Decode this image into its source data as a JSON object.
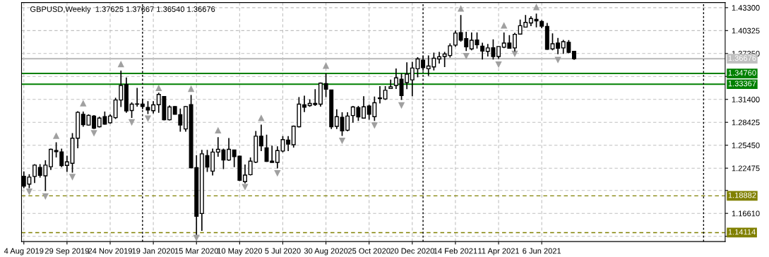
{
  "chart_data": {
    "type": "candlestick",
    "title": "GBPUSD,Weekly  1.37625 1.37667 1.36540 1.36676",
    "color": "#000000",
    "x": [
      "2019-08-04",
      "2019-08-11",
      "2019-08-18",
      "2019-08-25",
      "2019-09-01",
      "2019-09-08",
      "2019-09-15",
      "2019-09-22",
      "2019-09-29",
      "2019-10-06",
      "2019-10-13",
      "2019-10-20",
      "2019-10-27",
      "2019-11-03",
      "2019-11-10",
      "2019-11-17",
      "2019-11-24",
      "2019-12-01",
      "2019-12-08",
      "2019-12-15",
      "2019-12-22",
      "2019-12-29",
      "2020-01-05",
      "2020-01-12",
      "2020-01-19",
      "2020-01-26",
      "2020-02-02",
      "2020-02-09",
      "2020-02-16",
      "2020-02-23",
      "2020-03-01",
      "2020-03-08",
      "2020-03-15",
      "2020-03-22",
      "2020-03-29",
      "2020-04-05",
      "2020-04-12",
      "2020-04-19",
      "2020-04-26",
      "2020-05-03",
      "2020-05-10",
      "2020-05-17",
      "2020-05-24",
      "2020-05-31",
      "2020-06-07",
      "2020-06-14",
      "2020-06-21",
      "2020-06-28",
      "2020-07-05",
      "2020-07-12",
      "2020-07-19",
      "2020-07-26",
      "2020-08-02",
      "2020-08-09",
      "2020-08-16",
      "2020-08-23",
      "2020-08-30",
      "2020-09-06",
      "2020-09-13",
      "2020-09-20",
      "2020-09-27",
      "2020-10-04",
      "2020-10-11",
      "2020-10-18",
      "2020-10-25",
      "2020-11-01",
      "2020-11-08",
      "2020-11-15",
      "2020-11-22",
      "2020-11-29",
      "2020-12-06",
      "2020-12-13",
      "2020-12-20",
      "2020-12-27",
      "2021-01-03",
      "2021-01-10",
      "2021-01-17",
      "2021-01-24",
      "2021-01-31",
      "2021-02-07",
      "2021-02-14",
      "2021-02-21",
      "2021-02-28",
      "2021-03-07",
      "2021-03-14",
      "2021-03-21",
      "2021-03-28",
      "2021-04-04",
      "2021-04-11",
      "2021-04-18",
      "2021-04-25",
      "2021-05-02",
      "2021-05-09",
      "2021-05-16",
      "2021-05-23",
      "2021-05-30",
      "2021-06-06",
      "2021-06-13",
      "2021-06-20",
      "2021-06-27",
      "2021-07-04",
      "2021-07-11",
      "2021-07-18"
    ],
    "ohlc": [
      [
        1.2143,
        1.2206,
        1.1989,
        1.2016
      ],
      [
        1.2041,
        1.217,
        1.1989,
        1.2131
      ],
      [
        1.214,
        1.2299,
        1.2055,
        1.2287
      ],
      [
        1.2257,
        1.2299,
        1.2125,
        1.2154
      ],
      [
        1.2149,
        1.235,
        1.1951,
        1.2287
      ],
      [
        1.2266,
        1.2501,
        1.2224,
        1.2492
      ],
      [
        1.2476,
        1.2584,
        1.2386,
        1.2461
      ],
      [
        1.2458,
        1.2501,
        1.226,
        1.2281
      ],
      [
        1.2284,
        1.241,
        1.2199,
        1.2329
      ],
      [
        1.2311,
        1.2702,
        1.219,
        1.2636
      ],
      [
        1.2636,
        1.2987,
        1.2506,
        1.2972
      ],
      [
        1.2945,
        1.2981,
        1.2785,
        1.2813
      ],
      [
        1.2807,
        1.2945,
        1.2801,
        1.2933
      ],
      [
        1.2924,
        1.2936,
        1.2756,
        1.2767
      ],
      [
        1.2785,
        1.2915,
        1.2776,
        1.2897
      ],
      [
        1.2915,
        1.2981,
        1.2813,
        1.2819
      ],
      [
        1.2837,
        1.2945,
        1.2825,
        1.2924
      ],
      [
        1.2903,
        1.3161,
        1.2885,
        1.3132
      ],
      [
        1.3132,
        1.3513,
        1.3042,
        1.3321
      ],
      [
        1.3333,
        1.3423,
        1.2966,
        1.299
      ],
      [
        1.2996,
        1.3101,
        1.29,
        1.3078
      ],
      [
        1.3078,
        1.3288,
        1.3047,
        1.308
      ],
      [
        1.3078,
        1.3146,
        1.3011,
        1.3047
      ],
      [
        1.3035,
        1.3116,
        1.2951,
        1.3002
      ],
      [
        1.2993,
        1.3116,
        1.2957,
        1.3069
      ],
      [
        1.3071,
        1.3227,
        1.2966,
        1.3204
      ],
      [
        1.3177,
        1.3183,
        1.2867,
        1.2876
      ],
      [
        1.2876,
        1.3062,
        1.2867,
        1.3042
      ],
      [
        1.3047,
        1.3053,
        1.2942,
        1.2948
      ],
      [
        1.2942,
        1.302,
        1.272,
        1.2807
      ],
      [
        1.2756,
        1.3056,
        1.272,
        1.3047
      ],
      [
        1.3071,
        1.3197,
        1.2245,
        1.2254
      ],
      [
        1.2254,
        1.2416,
        1.1383,
        1.1623
      ],
      [
        1.1659,
        1.2485,
        1.1433,
        1.2434
      ],
      [
        1.241,
        1.2485,
        1.2199,
        1.2263
      ],
      [
        1.2209,
        1.2501,
        1.2152,
        1.2456
      ],
      [
        1.2456,
        1.265,
        1.2395,
        1.2492
      ],
      [
        1.2483,
        1.2501,
        1.2236,
        1.2353
      ],
      [
        1.2353,
        1.2639,
        1.2344,
        1.2492
      ],
      [
        1.2483,
        1.2483,
        1.226,
        1.2398
      ],
      [
        1.2404,
        1.241,
        1.208,
        1.2091
      ],
      [
        1.2073,
        1.2296,
        1.205,
        1.2158
      ],
      [
        1.2163,
        1.2386,
        1.2154,
        1.2338
      ],
      [
        1.2326,
        1.2729,
        1.2314,
        1.2663
      ],
      [
        1.2663,
        1.2813,
        1.247,
        1.2537
      ],
      [
        1.251,
        1.2681,
        1.233,
        1.2335
      ],
      [
        1.2338,
        1.2539,
        1.232,
        1.2323
      ],
      [
        1.2323,
        1.253,
        1.2245,
        1.2476
      ],
      [
        1.247,
        1.2663,
        1.2452,
        1.2618
      ],
      [
        1.2611,
        1.2663,
        1.247,
        1.256
      ],
      [
        1.2551,
        1.2801,
        1.2515,
        1.2792
      ],
      [
        1.2785,
        1.317,
        1.2776,
        1.3078
      ],
      [
        1.3069,
        1.3188,
        1.2975,
        1.3038
      ],
      [
        1.306,
        1.3141,
        1.3044,
        1.3087
      ],
      [
        1.3087,
        1.3272,
        1.3056,
        1.3074
      ],
      [
        1.3078,
        1.336,
        1.3047,
        1.3351
      ],
      [
        1.3344,
        1.348,
        1.317,
        1.3272
      ],
      [
        1.3261,
        1.3267,
        1.2756,
        1.2785
      ],
      [
        1.2789,
        1.3011,
        1.2756,
        1.2915
      ],
      [
        1.2906,
        1.2972,
        1.2666,
        1.2731
      ],
      [
        1.274,
        1.2972,
        1.2726,
        1.2924
      ],
      [
        1.293,
        1.3056,
        1.2837,
        1.3042
      ],
      [
        1.3032,
        1.3056,
        1.2861,
        1.2912
      ],
      [
        1.2897,
        1.3182,
        1.2891,
        1.3044
      ],
      [
        1.3053,
        1.3071,
        1.2876,
        1.2948
      ],
      [
        1.2915,
        1.3177,
        1.2861,
        1.3096
      ],
      [
        1.3159,
        1.3312,
        1.3087,
        1.315
      ],
      [
        1.3146,
        1.3312,
        1.3132,
        1.3258
      ],
      [
        1.3281,
        1.3396,
        1.3276,
        1.3303
      ],
      [
        1.3321,
        1.354,
        1.3276,
        1.342
      ],
      [
        1.3402,
        1.3477,
        1.3132,
        1.3191
      ],
      [
        1.3357,
        1.3621,
        1.3272,
        1.3468
      ],
      [
        1.3393,
        1.3627,
        1.3182,
        1.3546
      ],
      [
        1.3537,
        1.3687,
        1.3426,
        1.3664
      ],
      [
        1.3648,
        1.3702,
        1.3513,
        1.3552
      ],
      [
        1.3537,
        1.3711,
        1.3444,
        1.3573
      ],
      [
        1.3561,
        1.3747,
        1.3516,
        1.3673
      ],
      [
        1.3664,
        1.3756,
        1.3606,
        1.3693
      ],
      [
        1.3696,
        1.3756,
        1.3558,
        1.3729
      ],
      [
        1.3709,
        1.3865,
        1.3682,
        1.3835
      ],
      [
        1.3844,
        1.4033,
        1.3822,
        1.4
      ],
      [
        1.4006,
        1.4234,
        1.3889,
        1.391
      ],
      [
        1.3928,
        1.4018,
        1.3768,
        1.3822
      ],
      [
        1.3795,
        1.4009,
        1.3777,
        1.3907
      ],
      [
        1.391,
        1.4009,
        1.3799,
        1.3849
      ],
      [
        1.3829,
        1.3874,
        1.3657,
        1.3768
      ],
      [
        1.3763,
        1.3858,
        1.3696,
        1.3808
      ],
      [
        1.381,
        1.3919,
        1.3657,
        1.3696
      ],
      [
        1.3696,
        1.3829,
        1.3666,
        1.3826
      ],
      [
        1.3817,
        1.4009,
        1.3804,
        1.3871
      ],
      [
        1.3871,
        1.3973,
        1.3799,
        1.3804
      ],
      [
        1.3808,
        1.4003,
        1.3763,
        1.3984
      ],
      [
        1.3987,
        1.4174,
        1.3982,
        1.4096
      ],
      [
        1.4078,
        1.4234,
        1.4072,
        1.4138
      ],
      [
        1.4132,
        1.4219,
        1.409,
        1.4189
      ],
      [
        1.4177,
        1.4252,
        1.4075,
        1.4159
      ],
      [
        1.415,
        1.4168,
        1.4063,
        1.409
      ],
      [
        1.4087,
        1.4132,
        1.3783,
        1.379
      ],
      [
        1.3795,
        1.3997,
        1.3777,
        1.3862
      ],
      [
        1.3871,
        1.3937,
        1.3727,
        1.3804
      ],
      [
        1.3808,
        1.3912,
        1.3732,
        1.3889
      ],
      [
        1.388,
        1.391,
        1.3738,
        1.375
      ],
      [
        1.37625,
        1.37667,
        1.3654,
        1.36676
      ]
    ],
    "series": [
      {
        "type": "scatter",
        "color": "#a0a0a0",
        "marker": "triangle",
        "x": [
          "2019-09-15",
          "2019-10-20",
          "2019-12-08",
          "2020-01-26",
          "2020-03-08",
          "2020-04-12",
          "2020-06-07",
          "2020-08-30",
          "2021-02-21",
          "2021-04-18",
          "2021-05-30"
        ],
        "values": [
          1.267,
          1.309,
          1.36,
          1.329,
          1.328,
          1.274,
          1.29,
          1.358,
          1.432,
          1.41,
          1.434
        ]
      },
      {
        "type": "scatter",
        "color": "#a0a0a0",
        "marker": "triangle",
        "x": [
          "2019-08-11",
          "2019-09-01",
          "2019-10-06",
          "2019-11-03",
          "2019-12-22",
          "2020-01-12",
          "2020-03-15",
          "2020-05-17",
          "2020-06-28",
          "2020-09-20",
          "2020-11-01",
          "2020-12-06",
          "2021-02-28",
          "2021-04-11",
          "2021-05-02",
          "2021-06-27"
        ],
        "values": [
          1.194,
          1.188,
          1.213,
          1.27,
          1.284,
          1.289,
          1.134,
          1.2,
          1.218,
          1.26,
          1.28,
          1.306,
          1.37,
          1.359,
          1.373,
          1.365
        ]
      }
    ],
    "xlim": [
      "2019-08-01",
      "2022-01-30"
    ],
    "xticks": [
      {
        "value": "2019-08-04",
        "label": "4 Aug 2019"
      },
      {
        "value": "2019-09-29",
        "label": "29 Sep 2019"
      },
      {
        "value": "2019-11-24",
        "label": "24 Nov 2019"
      },
      {
        "value": "2020-01-19",
        "label": "19 Jan 2020"
      },
      {
        "value": "2020-03-15",
        "label": "15 Mar 2020"
      },
      {
        "value": "2020-05-10",
        "label": "10 May 2020"
      },
      {
        "value": "2020-07-05",
        "label": "5 Jul 2020"
      },
      {
        "value": "2020-08-30",
        "label": "30 Aug 2020"
      },
      {
        "value": "2020-10-25",
        "label": "25 Oct 2020"
      },
      {
        "value": "2020-12-20",
        "label": "20 Dec 2020"
      },
      {
        "value": "2021-02-14",
        "label": "14 Feb 2021"
      },
      {
        "value": "2021-04-11",
        "label": "11 Apr 2021"
      },
      {
        "value": "2021-06-06",
        "label": "6 Jun 2021"
      }
    ],
    "ylim": [
      1.1295,
      1.4396
    ],
    "yticks": [
      {
        "value": 1.433,
        "label": "1.43300"
      },
      {
        "value": 1.40325,
        "label": "1.40325"
      },
      {
        "value": 1.3735,
        "label": "1.37350"
      },
      {
        "value": 1.34375,
        "label": null
      },
      {
        "value": 1.314,
        "label": "1.31400"
      },
      {
        "value": 1.28425,
        "label": "1.28425"
      },
      {
        "value": 1.2545,
        "label": "1.25450"
      },
      {
        "value": 1.22475,
        "label": "1.22475"
      },
      {
        "value": 1.19585,
        "label": null
      },
      {
        "value": 1.1661,
        "label": "1.16610"
      },
      {
        "value": 1.13635,
        "label": null
      }
    ],
    "grid": true,
    "ref_lines": [
      {
        "axis": "y",
        "value": 1.36676,
        "label": "1.36676",
        "color": "#c0c0c0",
        "line_style": "solid"
      },
      {
        "axis": "y",
        "value": 1.3476,
        "label": "1.34760",
        "color": "#008000",
        "line_style": "solid"
      },
      {
        "axis": "y",
        "value": 1.33367,
        "label": "1.33367",
        "color": "#008000",
        "line_style": "solid"
      },
      {
        "axis": "y",
        "value": 1.18882,
        "label": "1.18882",
        "color": "#808000",
        "line_style": "dashed"
      },
      {
        "axis": "y",
        "value": 1.14114,
        "label": "1.14114",
        "color": "#808000",
        "line_style": "dashed"
      },
      {
        "axis": "x",
        "value": "2020-01-05",
        "color": "#000000",
        "line_style": "dotted"
      },
      {
        "axis": "x",
        "value": "2021-01-03",
        "color": "#000000",
        "line_style": "dotted"
      },
      {
        "axis": "x",
        "value": "2022-01-02",
        "color": "#000000",
        "line_style": "dotted"
      }
    ]
  }
}
